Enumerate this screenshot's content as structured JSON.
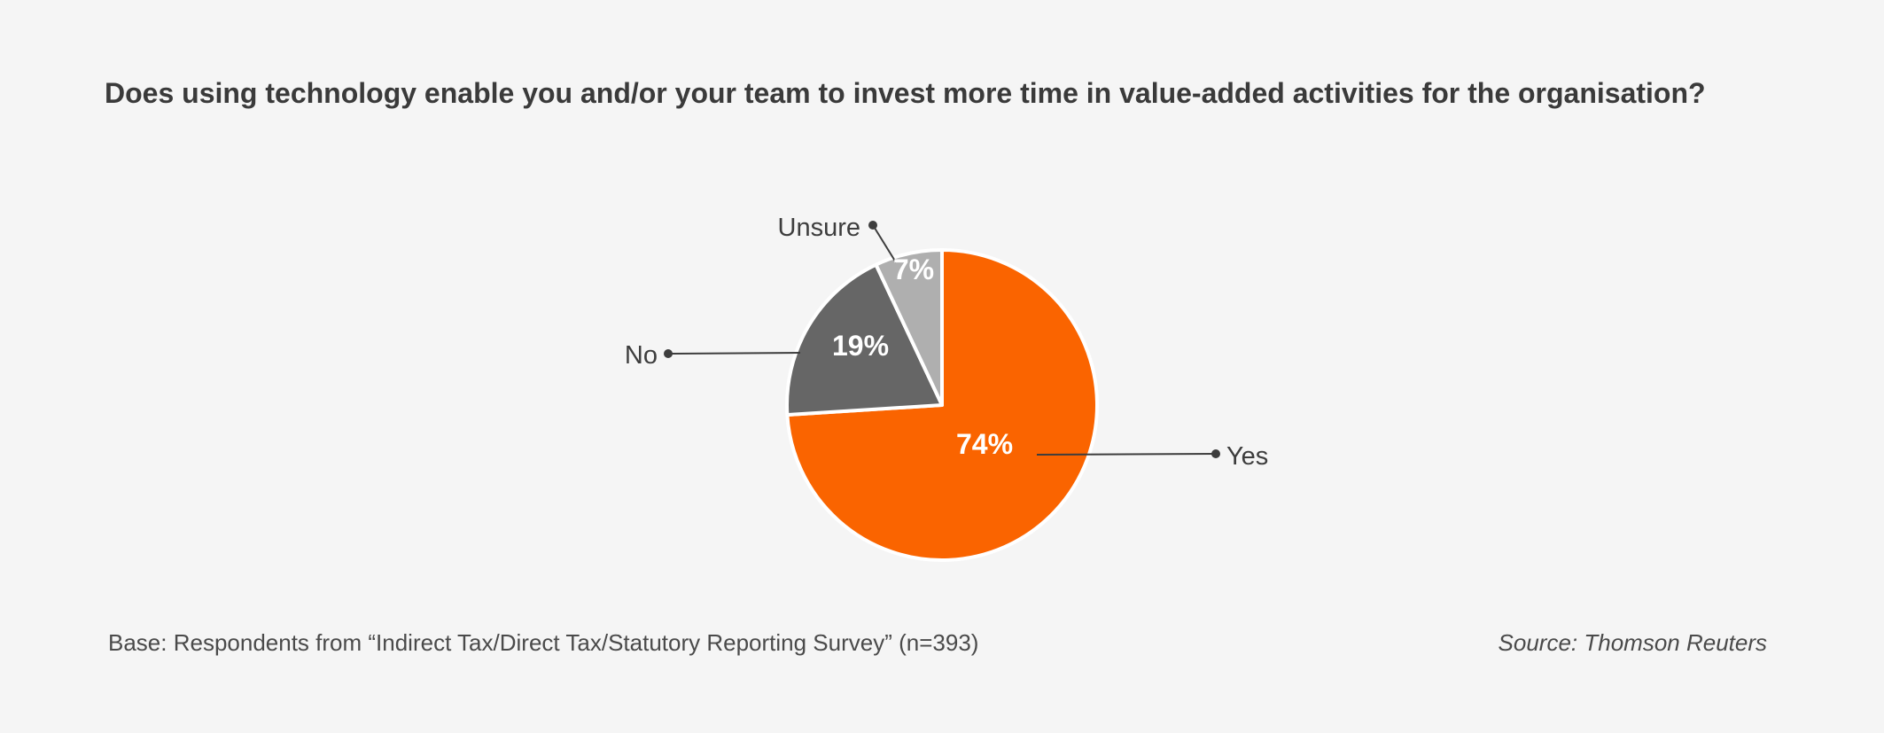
{
  "title": "Does using technology enable you and/or your team to invest more time in value-added activities for the organisation?",
  "footnote": "Base: Respondents from “Indirect Tax/Direct Tax/Statutory Reporting Survey” (n=393)",
  "source": "Source: Thomson Reuters",
  "chart_data": {
    "type": "pie",
    "title": "Does using technology enable you and/or your team to invest more time in value-added activities for the organisation?",
    "slices": [
      {
        "label": "Yes",
        "value": 74,
        "value_label": "74%",
        "color": "#fa6400"
      },
      {
        "label": "No",
        "value": 19,
        "value_label": "19%",
        "color": "#666666"
      },
      {
        "label": "Unsure",
        "value": 7,
        "value_label": "7%",
        "color": "#afafaf"
      }
    ],
    "start": "12 o'clock",
    "direction": "clockwise",
    "legend": "none (direct labels with leader lines)"
  }
}
